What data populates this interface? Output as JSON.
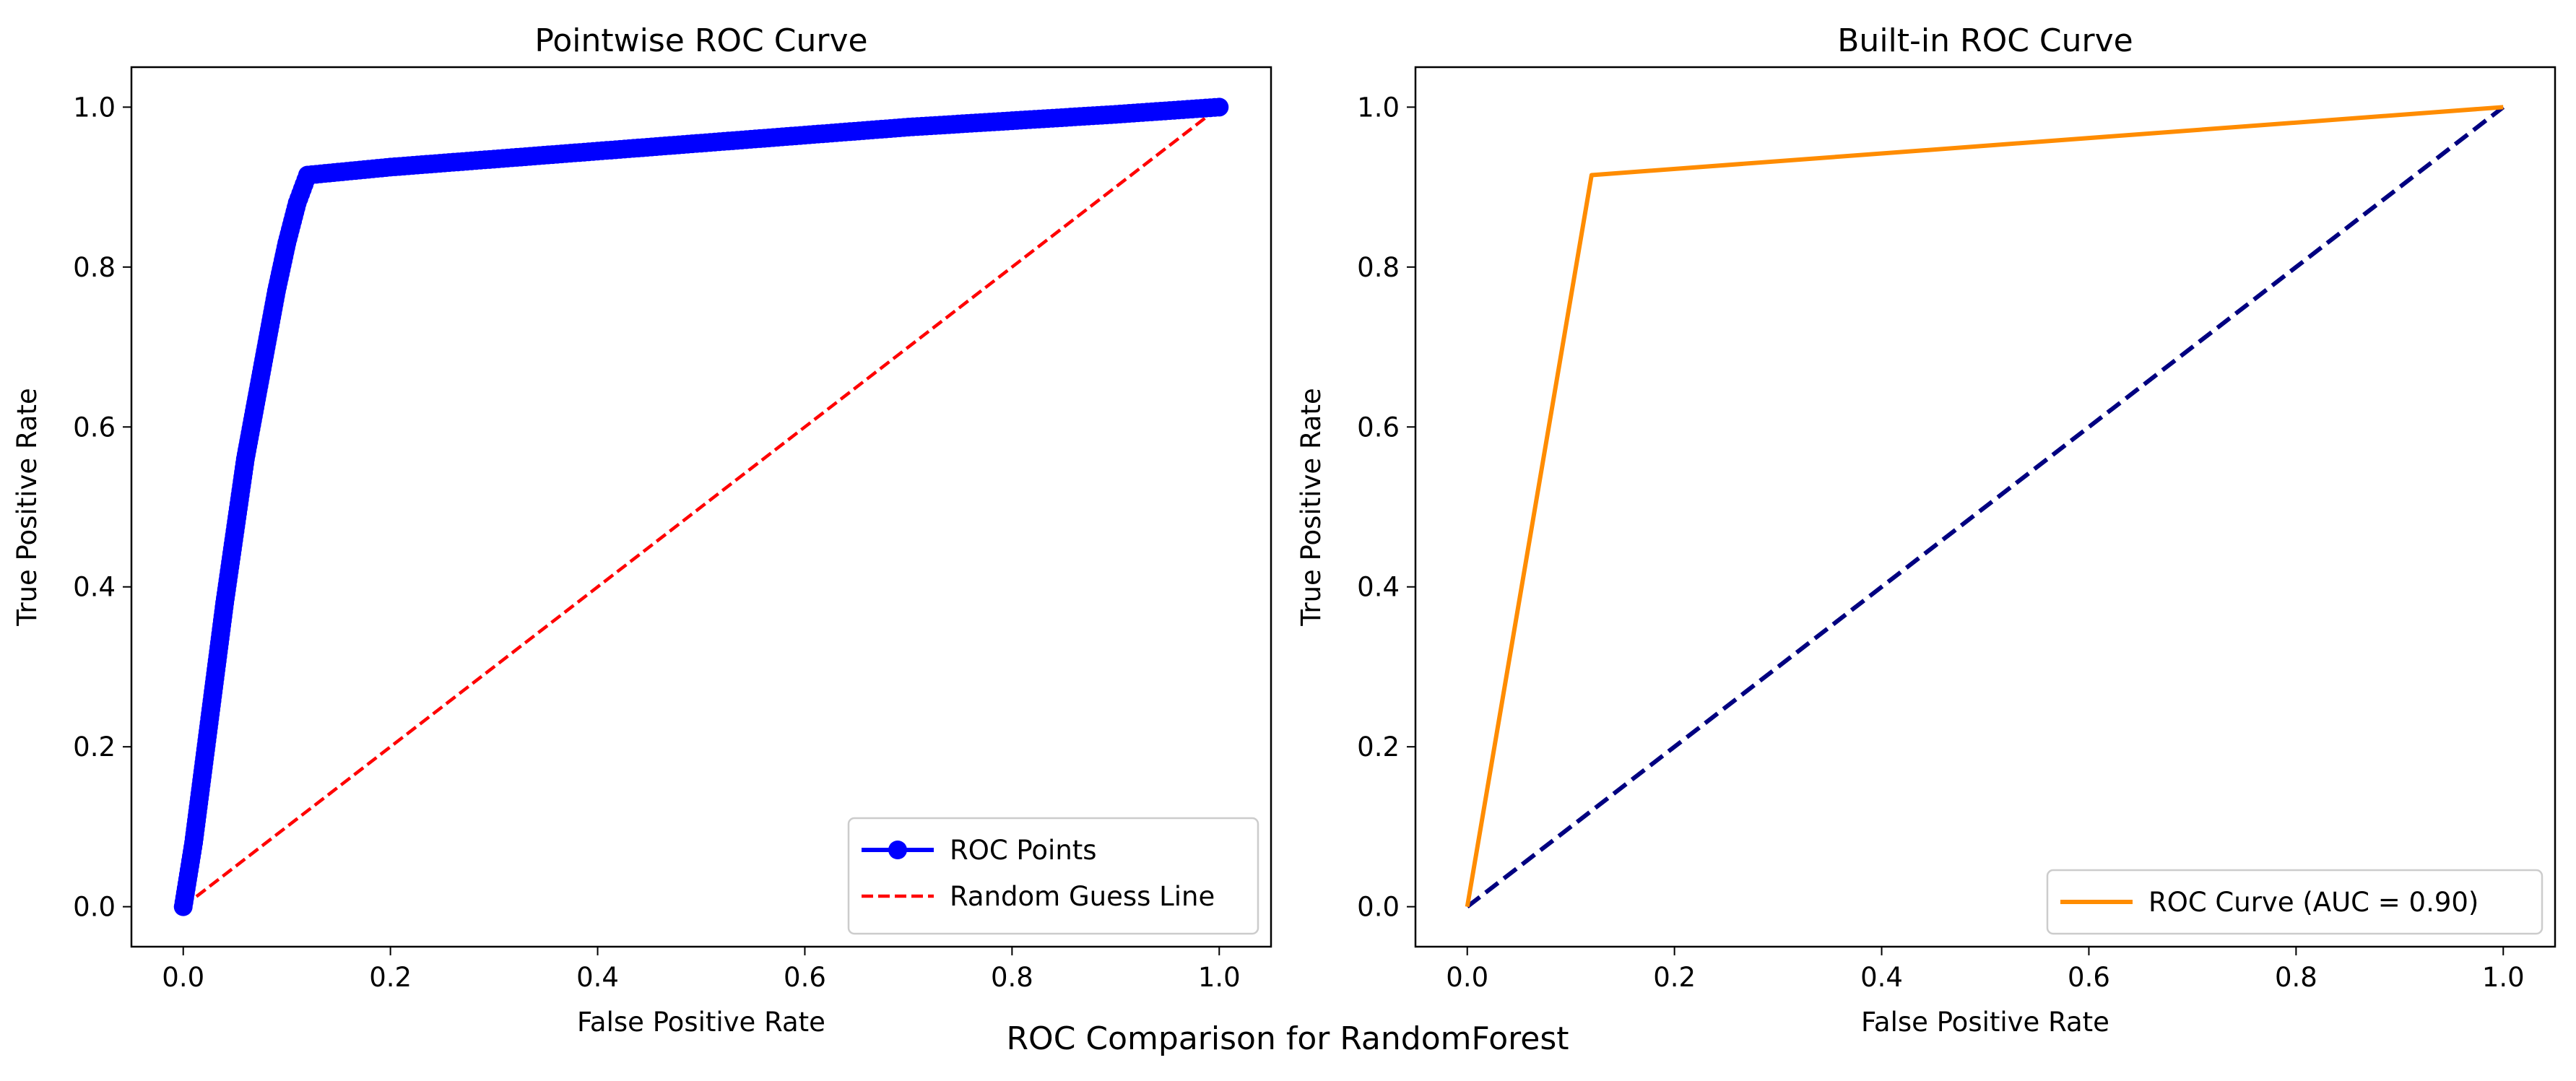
{
  "figure": {
    "suptitle": "ROC Comparison for RandomForest"
  },
  "chart_data": [
    {
      "type": "line",
      "title": "Pointwise ROC Curve",
      "xlabel": "False Positive Rate",
      "ylabel": "True Positive Rate",
      "xlim": [
        -0.05,
        1.05
      ],
      "ylim": [
        -0.05,
        1.05
      ],
      "xticks": [
        "0.0",
        "0.2",
        "0.4",
        "0.6",
        "0.8",
        "1.0"
      ],
      "yticks": [
        "0.0",
        "0.2",
        "0.4",
        "0.6",
        "0.8",
        "1.0"
      ],
      "grid": false,
      "legend": "lower-right",
      "series": [
        {
          "name": "ROC Points",
          "style": "solid-markers",
          "color": "#0000ff",
          "x": [
            0.0,
            0.01,
            0.02,
            0.03,
            0.04,
            0.05,
            0.06,
            0.07,
            0.08,
            0.09,
            0.1,
            0.11,
            0.12,
            0.2,
            0.3,
            0.4,
            0.5,
            0.6,
            0.7,
            0.8,
            0.9,
            1.0
          ],
          "y": [
            0.0,
            0.08,
            0.18,
            0.28,
            0.38,
            0.47,
            0.56,
            0.63,
            0.7,
            0.77,
            0.83,
            0.88,
            0.915,
            0.925,
            0.935,
            0.945,
            0.955,
            0.965,
            0.975,
            0.983,
            0.991,
            1.0
          ]
        },
        {
          "name": "Random Guess Line",
          "style": "dashed",
          "color": "#ff0000",
          "x": [
            0.0,
            1.0
          ],
          "y": [
            0.0,
            1.0
          ]
        }
      ]
    },
    {
      "type": "line",
      "title": "Built-in ROC Curve",
      "xlabel": "False Positive Rate",
      "ylabel": "True Positive Rate",
      "xlim": [
        -0.05,
        1.05
      ],
      "ylim": [
        -0.05,
        1.05
      ],
      "xticks": [
        "0.0",
        "0.2",
        "0.4",
        "0.6",
        "0.8",
        "1.0"
      ],
      "yticks": [
        "0.0",
        "0.2",
        "0.4",
        "0.6",
        "0.8",
        "1.0"
      ],
      "grid": false,
      "legend": "lower-right",
      "series": [
        {
          "name": "ROC Curve (AUC = 0.90)",
          "style": "solid",
          "color": "#ff8c00",
          "x": [
            0.0,
            0.12,
            1.0
          ],
          "y": [
            0.0,
            0.915,
            1.0
          ]
        },
        {
          "style": "dashed",
          "color": "#000080",
          "x": [
            0.0,
            1.0
          ],
          "y": [
            0.0,
            1.0
          ]
        }
      ]
    }
  ]
}
